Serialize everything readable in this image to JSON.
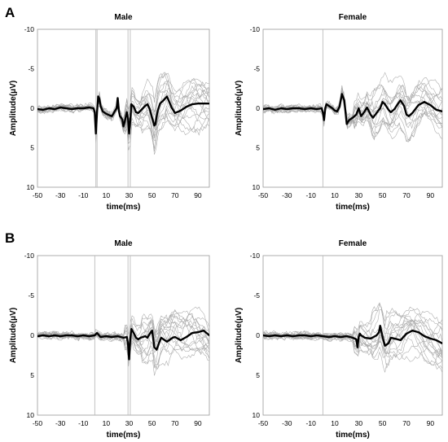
{
  "panel_letters": [
    "A",
    "B"
  ],
  "chart_data": [
    {
      "type": "line",
      "panel": "A",
      "title": "Male",
      "xlabel": "time(ms)",
      "ylabel": "Amplitude(μV)",
      "xlim": [
        -50,
        100
      ],
      "ylim": [
        -10,
        10
      ],
      "y_inverted": true,
      "xticks": [
        "-50",
        "-30",
        "-10",
        "10",
        "30",
        "50",
        "70",
        "90"
      ],
      "yticks": [
        "-10",
        "-5",
        "0",
        "5",
        "10"
      ],
      "grid": false,
      "legend": "none",
      "mean_color": "#000000",
      "trace_color": "#a9a9a9",
      "stimulus_lines": [
        1,
        2,
        29,
        31
      ],
      "mean_trace": {
        "x": [
          -50,
          -45,
          -40,
          -35,
          -30,
          -25,
          -20,
          -15,
          -10,
          -5,
          -1,
          0,
          1,
          2,
          3,
          4,
          5,
          7,
          10,
          13,
          15,
          17,
          19,
          20,
          21,
          22,
          24,
          25,
          26,
          28,
          29,
          30,
          31,
          32,
          34,
          36,
          38,
          40,
          42,
          44,
          46,
          48,
          50,
          52,
          53,
          54,
          55,
          57,
          60,
          63,
          65,
          67,
          70,
          75,
          80,
          85,
          90,
          95,
          100
        ],
        "y": [
          0.1,
          0.2,
          0,
          0.1,
          -0.1,
          0,
          0.1,
          0,
          0,
          -0.1,
          0,
          0.5,
          3.2,
          0.5,
          -1.5,
          -1.2,
          -0.3,
          0.4,
          0.7,
          0.9,
          1.0,
          0.5,
          0,
          -1.3,
          0.3,
          1.0,
          1.4,
          2.3,
          1.8,
          0.5,
          1.2,
          3.2,
          1.6,
          -0.5,
          -0.2,
          0.5,
          0.6,
          0.3,
          0,
          -0.3,
          -0.5,
          0.1,
          1.2,
          2.2,
          2.0,
          1.0,
          0.3,
          -0.6,
          -1.0,
          -1.5,
          -0.8,
          -0.1,
          0.6,
          0.3,
          -0.2,
          -0.5,
          -0.6,
          -0.6,
          -0.6
        ]
      }
    },
    {
      "type": "line",
      "panel": "A",
      "title": "Female",
      "xlabel": "time(ms)",
      "ylabel": "Amplitude(μV)",
      "xlim": [
        -50,
        100
      ],
      "ylim": [
        -10,
        10
      ],
      "y_inverted": true,
      "xticks": [
        "-50",
        "-30",
        "-10",
        "10",
        "30",
        "50",
        "70",
        "90"
      ],
      "yticks": [
        "-10",
        "-5",
        "0",
        "5",
        "10"
      ],
      "grid": false,
      "legend": "none",
      "mean_color": "#000000",
      "trace_color": "#a9a9a9",
      "stimulus_lines": [
        0
      ],
      "mean_trace": {
        "x": [
          -50,
          -45,
          -40,
          -35,
          -30,
          -25,
          -20,
          -15,
          -10,
          -5,
          -1,
          0,
          1,
          2,
          3,
          5,
          8,
          10,
          12,
          14,
          16,
          18,
          20,
          22,
          25,
          28,
          30,
          32,
          35,
          37,
          40,
          42,
          45,
          48,
          50,
          52,
          55,
          57,
          60,
          63,
          65,
          68,
          70,
          72,
          75,
          80,
          85,
          90,
          95,
          100
        ],
        "y": [
          0.1,
          0,
          0.2,
          0,
          0.1,
          0,
          0,
          0.1,
          0,
          0.1,
          0,
          0.5,
          1.5,
          0,
          -0.5,
          -0.3,
          0,
          0.3,
          0.4,
          -0.2,
          -1.8,
          -1.0,
          2.0,
          1.5,
          1.2,
          0.8,
          0,
          1.0,
          0.4,
          -0.1,
          0.8,
          1.2,
          0.6,
          0,
          -0.8,
          -0.5,
          0.2,
          0.5,
          0.1,
          -0.6,
          -1.0,
          -0.3,
          0.8,
          1.0,
          0.6,
          -0.4,
          -0.8,
          -0.4,
          0.2,
          0.4
        ]
      }
    },
    {
      "type": "line",
      "panel": "B",
      "title": "Male",
      "xlabel": "time(ms)",
      "ylabel": "Amplitude(μV)",
      "xlim": [
        -50,
        100
      ],
      "ylim": [
        -10,
        10
      ],
      "y_inverted": true,
      "xticks": [
        "-50",
        "-30",
        "-10",
        "10",
        "30",
        "50",
        "70",
        "90"
      ],
      "yticks": [
        "-10",
        "-5",
        "0",
        "5",
        "10"
      ],
      "grid": false,
      "legend": "none",
      "mean_color": "#000000",
      "trace_color": "#a9a9a9",
      "stimulus_lines": [
        0,
        29,
        31
      ],
      "mean_trace": {
        "x": [
          -50,
          -45,
          -40,
          -35,
          -30,
          -25,
          -20,
          -15,
          -10,
          -5,
          0,
          2,
          5,
          10,
          15,
          20,
          25,
          28,
          29,
          30,
          31,
          32,
          34,
          36,
          38,
          40,
          42,
          44,
          46,
          48,
          50,
          52,
          54,
          56,
          58,
          60,
          63,
          65,
          68,
          70,
          75,
          80,
          85,
          90,
          95,
          100
        ],
        "y": [
          0.1,
          0,
          0.1,
          0,
          0.1,
          0,
          0,
          0.1,
          0,
          0.1,
          0,
          -0.3,
          0.2,
          0.1,
          0.2,
          0.1,
          0.3,
          0.2,
          1.0,
          3.0,
          0.5,
          -0.8,
          -0.3,
          0.3,
          0.5,
          0.3,
          0.2,
          0.1,
          0.3,
          -0.2,
          -0.6,
          1.5,
          1.8,
          1.0,
          0.3,
          0.5,
          0.8,
          0.6,
          0.3,
          0.2,
          0.6,
          0.2,
          -0.3,
          -0.4,
          -0.6,
          0
        ]
      }
    },
    {
      "type": "line",
      "panel": "B",
      "title": "Female",
      "xlabel": "time(ms)",
      "ylabel": "Amplitude(μV)",
      "xlim": [
        -50,
        100
      ],
      "ylim": [
        -10,
        10
      ],
      "y_inverted": true,
      "xticks": [
        "-50",
        "-30",
        "-10",
        "10",
        "30",
        "50",
        "70",
        "90"
      ],
      "yticks": [
        "-10",
        "-5",
        "0",
        "5",
        "10"
      ],
      "grid": false,
      "legend": "none",
      "mean_color": "#000000",
      "trace_color": "#a9a9a9",
      "stimulus_lines": [
        0
      ],
      "mean_trace": {
        "x": [
          -50,
          -45,
          -40,
          -35,
          -30,
          -25,
          -20,
          -15,
          -10,
          -5,
          0,
          5,
          10,
          15,
          20,
          25,
          28,
          29,
          30,
          31,
          32,
          35,
          40,
          45,
          47,
          48,
          50,
          52,
          55,
          57,
          60,
          65,
          70,
          75,
          80,
          85,
          90,
          95,
          100
        ],
        "y": [
          0,
          0.1,
          0,
          0.1,
          0,
          0.1,
          0,
          0,
          0.1,
          0,
          0.1,
          0.2,
          0.1,
          0.2,
          0.1,
          0.3,
          0.5,
          1.5,
          0.2,
          -0.2,
          0,
          0.3,
          0.4,
          0,
          -0.4,
          -1.2,
          0.2,
          1.3,
          1.0,
          0.3,
          0.4,
          0.6,
          -0.2,
          -0.6,
          -0.4,
          0.1,
          0.4,
          0.6,
          1.0
        ]
      }
    }
  ]
}
